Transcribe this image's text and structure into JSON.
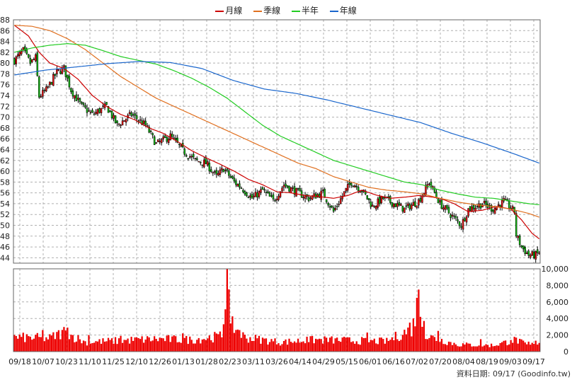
{
  "chart_data": {
    "type": "candlestick",
    "legend": [
      {
        "name": "月線",
        "color": "#cc0000"
      },
      {
        "name": "季線",
        "color": "#e07020"
      },
      {
        "name": "半年",
        "color": "#22cc22"
      },
      {
        "name": "年線",
        "color": "#1a66cc"
      }
    ],
    "price_axis": {
      "min": 43,
      "max": 88,
      "ticks": [
        44,
        46,
        48,
        50,
        52,
        54,
        56,
        58,
        60,
        62,
        64,
        66,
        68,
        70,
        72,
        74,
        76,
        78,
        80,
        82,
        84,
        86,
        88
      ]
    },
    "volume_axis": {
      "min": 0,
      "max": 10000,
      "ticks": [
        0,
        2000,
        4000,
        6000,
        8000,
        10000
      ],
      "tick_labels": [
        "0",
        "2,000",
        "4,000",
        "6,000",
        "8,000",
        "10,000"
      ]
    },
    "x_labels": [
      "09/18",
      "10/07",
      "10/23",
      "11/10",
      "11/25",
      "12/10",
      "12/26",
      "01/13",
      "01/28",
      "02/23",
      "03/11",
      "03/26",
      "04/14",
      "04/29",
      "05/15",
      "06/01",
      "06/16",
      "07/02",
      "07/20",
      "08/04",
      "08/19",
      "09/03",
      "09/17"
    ],
    "close_anchors": [
      [
        0,
        80.5
      ],
      [
        5,
        82.3
      ],
      [
        9,
        80
      ],
      [
        12,
        81
      ],
      [
        14,
        73.8
      ],
      [
        18,
        75
      ],
      [
        24,
        78.3
      ],
      [
        28,
        79
      ],
      [
        32,
        75
      ],
      [
        38,
        72
      ],
      [
        44,
        70.5
      ],
      [
        52,
        72
      ],
      [
        58,
        68.5
      ],
      [
        66,
        70.5
      ],
      [
        74,
        68.5
      ],
      [
        80,
        65
      ],
      [
        88,
        66.5
      ],
      [
        96,
        63.5
      ],
      [
        102,
        62
      ],
      [
        108,
        61.5
      ],
      [
        114,
        59
      ],
      [
        118,
        60.5
      ],
      [
        124,
        58
      ],
      [
        128,
        57
      ],
      [
        134,
        55
      ],
      [
        140,
        56.5
      ],
      [
        146,
        54.5
      ],
      [
        152,
        57.5
      ],
      [
        160,
        56
      ],
      [
        166,
        55
      ],
      [
        174,
        56
      ],
      [
        180,
        52.5
      ],
      [
        186,
        56
      ],
      [
        190,
        58
      ],
      [
        196,
        56.5
      ],
      [
        202,
        53.5
      ],
      [
        208,
        55
      ],
      [
        214,
        54
      ],
      [
        220,
        53
      ],
      [
        228,
        54.5
      ],
      [
        234,
        58
      ],
      [
        240,
        54
      ],
      [
        246,
        52
      ],
      [
        252,
        50
      ],
      [
        256,
        53
      ],
      [
        264,
        54
      ],
      [
        270,
        53
      ],
      [
        276,
        54.5
      ],
      [
        282,
        52.5
      ],
      [
        283,
        48.2
      ],
      [
        286,
        46
      ],
      [
        290,
        44.5
      ],
      [
        294,
        44.5
      ],
      [
        296,
        45
      ]
    ],
    "ma_month": [
      [
        0,
        87
      ],
      [
        8,
        85
      ],
      [
        14,
        82
      ],
      [
        20,
        80
      ],
      [
        28,
        79
      ],
      [
        36,
        77
      ],
      [
        44,
        74
      ],
      [
        52,
        72
      ],
      [
        60,
        70.5
      ],
      [
        68,
        69.5
      ],
      [
        76,
        68
      ],
      [
        84,
        67
      ],
      [
        92,
        65.5
      ],
      [
        100,
        63.8
      ],
      [
        108,
        62.5
      ],
      [
        116,
        61.3
      ],
      [
        124,
        60
      ],
      [
        132,
        58.5
      ],
      [
        140,
        57.5
      ],
      [
        148,
        56.2
      ],
      [
        156,
        56
      ],
      [
        164,
        55.5
      ],
      [
        172,
        55.3
      ],
      [
        180,
        55
      ],
      [
        188,
        55.5
      ],
      [
        196,
        56.5
      ],
      [
        204,
        55.6
      ],
      [
        212,
        55
      ],
      [
        220,
        55.2
      ],
      [
        228,
        55.5
      ],
      [
        234,
        55.3
      ],
      [
        240,
        55
      ],
      [
        248,
        54
      ],
      [
        256,
        52.5
      ],
      [
        264,
        52.8
      ],
      [
        272,
        53.5
      ],
      [
        280,
        53
      ],
      [
        286,
        51
      ],
      [
        292,
        48.5
      ],
      [
        296,
        47.5
      ]
    ],
    "ma_season": [
      [
        0,
        87
      ],
      [
        10,
        86.8
      ],
      [
        20,
        86
      ],
      [
        30,
        84.5
      ],
      [
        40,
        82.5
      ],
      [
        50,
        80
      ],
      [
        60,
        77.5
      ],
      [
        70,
        75.5
      ],
      [
        80,
        73.5
      ],
      [
        90,
        72
      ],
      [
        100,
        70.5
      ],
      [
        110,
        69
      ],
      [
        120,
        67.5
      ],
      [
        130,
        66
      ],
      [
        140,
        64.5
      ],
      [
        150,
        63
      ],
      [
        160,
        61.5
      ],
      [
        170,
        60.5
      ],
      [
        180,
        59
      ],
      [
        190,
        58
      ],
      [
        200,
        57
      ],
      [
        210,
        56.5
      ],
      [
        220,
        56.2
      ],
      [
        230,
        55.8
      ],
      [
        240,
        55
      ],
      [
        250,
        54.3
      ],
      [
        260,
        53.8
      ],
      [
        270,
        53.5
      ],
      [
        280,
        53
      ],
      [
        290,
        52.2
      ],
      [
        296,
        51.5
      ]
    ],
    "ma_half": [
      [
        0,
        82
      ],
      [
        10,
        82.8
      ],
      [
        20,
        83.3
      ],
      [
        30,
        83.6
      ],
      [
        40,
        83.3
      ],
      [
        50,
        82.3
      ],
      [
        60,
        81.2
      ],
      [
        70,
        80.5
      ],
      [
        80,
        79.8
      ],
      [
        90,
        78.6
      ],
      [
        100,
        77.2
      ],
      [
        110,
        75.5
      ],
      [
        120,
        73.5
      ],
      [
        130,
        71
      ],
      [
        140,
        68.5
      ],
      [
        150,
        66.5
      ],
      [
        160,
        65
      ],
      [
        170,
        63.5
      ],
      [
        180,
        62
      ],
      [
        190,
        61
      ],
      [
        200,
        60
      ],
      [
        210,
        59
      ],
      [
        220,
        58
      ],
      [
        230,
        57.5
      ],
      [
        240,
        56.5
      ],
      [
        250,
        55.8
      ],
      [
        260,
        55.2
      ],
      [
        270,
        55
      ],
      [
        280,
        54.5
      ],
      [
        290,
        54
      ],
      [
        296,
        53.8
      ]
    ],
    "ma_year": [
      [
        0,
        77.8
      ],
      [
        20,
        78.7
      ],
      [
        40,
        79.3
      ],
      [
        60,
        79.9
      ],
      [
        80,
        80.3
      ],
      [
        100,
        80.1
      ],
      [
        120,
        79
      ],
      [
        140,
        76.8
      ],
      [
        160,
        75.2
      ],
      [
        180,
        74.4
      ],
      [
        200,
        73.2
      ],
      [
        220,
        71.8
      ],
      [
        240,
        70.4
      ],
      [
        260,
        69
      ],
      [
        280,
        67
      ],
      [
        300,
        65.2
      ],
      [
        320,
        63.2
      ],
      [
        336,
        61.5
      ]
    ],
    "volume_anchors": [
      [
        0,
        1800
      ],
      [
        20,
        1700
      ],
      [
        28,
        2500
      ],
      [
        40,
        1200
      ],
      [
        60,
        1400
      ],
      [
        80,
        1600
      ],
      [
        100,
        1500
      ],
      [
        118,
        2000
      ],
      [
        120,
        10000
      ],
      [
        122,
        3500
      ],
      [
        130,
        1800
      ],
      [
        150,
        1200
      ],
      [
        170,
        1500
      ],
      [
        190,
        1400
      ],
      [
        210,
        1300
      ],
      [
        225,
        3000
      ],
      [
        228,
        6400
      ],
      [
        232,
        2000
      ],
      [
        250,
        900
      ],
      [
        270,
        800
      ],
      [
        283,
        1500
      ],
      [
        290,
        700
      ],
      [
        296,
        1300
      ]
    ],
    "volume_spikes": [
      [
        16,
        2600
      ],
      [
        30,
        2900
      ],
      [
        42,
        2000
      ],
      [
        60,
        1900
      ],
      [
        95,
        2200
      ],
      [
        118,
        3300
      ],
      [
        120,
        10000
      ],
      [
        122,
        3400
      ],
      [
        127,
        2600
      ],
      [
        165,
        1800
      ],
      [
        185,
        1700
      ],
      [
        199,
        2300
      ],
      [
        223,
        3500
      ],
      [
        225,
        4000
      ],
      [
        227,
        6500
      ],
      [
        229,
        4200
      ],
      [
        231,
        3700
      ],
      [
        239,
        2500
      ],
      [
        263,
        1500
      ],
      [
        280,
        1400
      ],
      [
        290,
        1200
      ]
    ],
    "source": "資料日期: 09/17 (Goodinfo.tw)"
  }
}
